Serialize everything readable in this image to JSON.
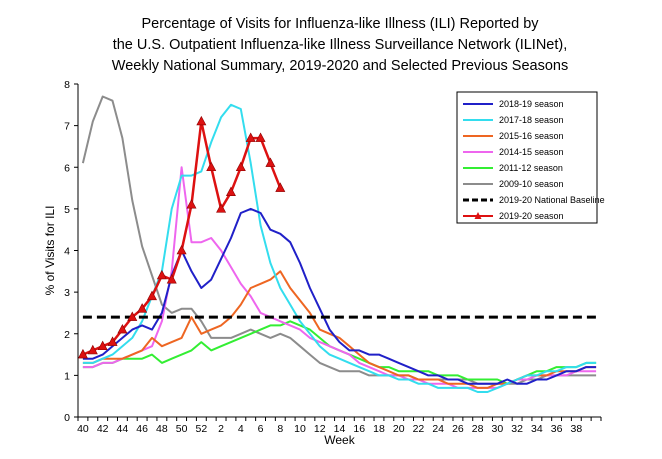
{
  "chart_data": {
    "type": "line",
    "title_lines": [
      "Percentage of Visits for Influenza-like Illness (ILI) Reported by",
      "the U.S. Outpatient Influenza-like Illness Surveillance Network (ILINet),",
      "Weekly National Summary, 2019-2020 and Selected Previous Seasons"
    ],
    "xlabel": "Week",
    "ylabel": "% of Visits for ILI",
    "ylim": [
      0,
      8
    ],
    "yticks": [
      0,
      1,
      2,
      3,
      4,
      5,
      6,
      7,
      8
    ],
    "xtick_labels": [
      "40",
      "42",
      "44",
      "46",
      "48",
      "50",
      "52",
      "2",
      "4",
      "6",
      "8",
      "10",
      "12",
      "14",
      "16",
      "18",
      "20",
      "22",
      "24",
      "26",
      "28",
      "30",
      "32",
      "34",
      "36",
      "38"
    ],
    "x_week_count": 53,
    "legend_position": "top-right",
    "series": [
      {
        "name": "2018-19 season",
        "color": "#2020c8",
        "style": "solid",
        "values": [
          1.4,
          1.4,
          1.5,
          1.7,
          1.9,
          2.1,
          2.2,
          2.1,
          2.5,
          3.4,
          4.0,
          3.5,
          3.1,
          3.3,
          3.8,
          4.3,
          4.9,
          5.0,
          4.9,
          4.5,
          4.4,
          4.2,
          3.7,
          3.1,
          2.6,
          2.1,
          1.8,
          1.6,
          1.6,
          1.5,
          1.5,
          1.4,
          1.3,
          1.2,
          1.1,
          1.0,
          1.0,
          0.9,
          0.9,
          0.8,
          0.8,
          0.8,
          0.8,
          0.9,
          0.8,
          0.8,
          0.9,
          0.9,
          1.0,
          1.1,
          1.1,
          1.2,
          1.2
        ]
      },
      {
        "name": "2017-18 season",
        "color": "#33ddee",
        "style": "solid",
        "values": [
          1.3,
          1.3,
          1.4,
          1.5,
          1.7,
          1.9,
          2.3,
          2.9,
          3.5,
          5.0,
          5.8,
          5.8,
          5.9,
          6.6,
          7.2,
          7.5,
          7.4,
          6.1,
          4.6,
          3.7,
          3.1,
          2.7,
          2.3,
          2.0,
          1.7,
          1.5,
          1.4,
          1.3,
          1.2,
          1.1,
          1.0,
          1.0,
          0.9,
          0.9,
          0.8,
          0.8,
          0.7,
          0.7,
          0.7,
          0.7,
          0.6,
          0.6,
          0.7,
          0.8,
          0.9,
          1.0,
          1.0,
          1.1,
          1.1,
          1.2,
          1.2,
          1.3,
          1.3
        ]
      },
      {
        "name": "2015-16 season",
        "color": "#ee6622",
        "style": "solid",
        "values": [
          1.3,
          1.3,
          1.4,
          1.4,
          1.4,
          1.5,
          1.6,
          1.9,
          1.7,
          1.8,
          1.9,
          2.4,
          2.0,
          2.1,
          2.2,
          2.4,
          2.7,
          3.1,
          3.2,
          3.3,
          3.5,
          3.1,
          2.8,
          2.5,
          2.1,
          2.0,
          1.9,
          1.7,
          1.5,
          1.3,
          1.2,
          1.1,
          1.0,
          1.0,
          0.9,
          0.9,
          0.9,
          0.8,
          0.8,
          0.8,
          0.7,
          0.7,
          0.8,
          0.8,
          0.9,
          1.0,
          1.0,
          1.0,
          1.1,
          1.1,
          1.1,
          1.2,
          1.2
        ]
      },
      {
        "name": "2014-15 season",
        "color": "#ee66ee",
        "style": "solid",
        "values": [
          1.2,
          1.2,
          1.3,
          1.3,
          1.4,
          1.5,
          1.6,
          1.7,
          2.3,
          3.5,
          6.0,
          4.2,
          4.2,
          4.3,
          4.0,
          3.6,
          3.2,
          2.9,
          2.5,
          2.4,
          2.3,
          2.2,
          2.1,
          1.9,
          1.8,
          1.7,
          1.6,
          1.5,
          1.3,
          1.2,
          1.1,
          1.0,
          1.0,
          0.9,
          0.9,
          0.8,
          0.8,
          0.8,
          0.7,
          0.7,
          0.7,
          0.7,
          0.7,
          0.8,
          0.9,
          0.9,
          1.0,
          1.0,
          1.0,
          1.0,
          1.1,
          1.1,
          1.1
        ]
      },
      {
        "name": "2011-12 season",
        "color": "#33ee33",
        "style": "solid",
        "values": [
          1.2,
          1.2,
          1.3,
          1.3,
          1.4,
          1.4,
          1.4,
          1.5,
          1.3,
          1.4,
          1.5,
          1.6,
          1.8,
          1.6,
          1.7,
          1.8,
          1.9,
          2.0,
          2.1,
          2.2,
          2.2,
          2.3,
          2.2,
          2.1,
          1.9,
          1.7,
          1.6,
          1.5,
          1.4,
          1.3,
          1.2,
          1.2,
          1.1,
          1.1,
          1.1,
          1.1,
          1.0,
          1.0,
          1.0,
          0.9,
          0.9,
          0.9,
          0.9,
          0.8,
          0.9,
          1.0,
          1.1,
          1.1,
          1.2,
          1.2,
          1.2,
          1.3,
          1.3
        ]
      },
      {
        "name": "2009-10 season",
        "color": "#8c8c8c",
        "style": "solid",
        "values": [
          6.1,
          7.1,
          7.7,
          7.6,
          6.7,
          5.2,
          4.1,
          3.4,
          2.7,
          2.5,
          2.6,
          2.6,
          2.3,
          1.9,
          1.9,
          1.9,
          2.0,
          2.1,
          2.0,
          1.9,
          2.0,
          1.9,
          1.7,
          1.5,
          1.3,
          1.2,
          1.1,
          1.1,
          1.1,
          1.0,
          1.0,
          1.0,
          1.0,
          1.0,
          0.9,
          0.9,
          0.9,
          0.9,
          0.9,
          0.9,
          0.8,
          0.8,
          0.8,
          0.8,
          0.8,
          0.9,
          0.9,
          1.0,
          1.0,
          1.0,
          1.0,
          1.0,
          1.0
        ]
      },
      {
        "name": "2019-20 National Baseline",
        "color": "#000000",
        "style": "dashed",
        "values": [
          2.4,
          2.4,
          2.4,
          2.4,
          2.4,
          2.4,
          2.4,
          2.4,
          2.4,
          2.4,
          2.4,
          2.4,
          2.4,
          2.4,
          2.4,
          2.4,
          2.4,
          2.4,
          2.4,
          2.4,
          2.4,
          2.4,
          2.4,
          2.4,
          2.4,
          2.4,
          2.4,
          2.4,
          2.4,
          2.4,
          2.4,
          2.4,
          2.4,
          2.4,
          2.4,
          2.4,
          2.4,
          2.4,
          2.4,
          2.4,
          2.4,
          2.4,
          2.4,
          2.4,
          2.4,
          2.4,
          2.4,
          2.4,
          2.4,
          2.4,
          2.4,
          2.4,
          2.4
        ]
      },
      {
        "name": "2019-20 season",
        "color": "#dd1111",
        "style": "marker",
        "values": [
          1.5,
          1.6,
          1.7,
          1.8,
          2.1,
          2.4,
          2.6,
          2.9,
          3.4,
          3.3,
          4.0,
          5.1,
          7.1,
          6.0,
          5.0,
          5.4,
          6.0,
          6.7,
          6.7,
          6.1,
          5.5
        ]
      }
    ]
  }
}
